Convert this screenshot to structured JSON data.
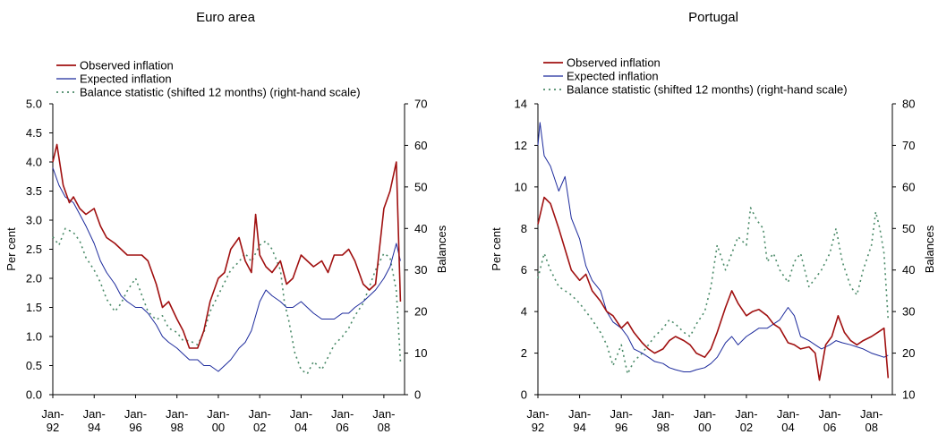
{
  "colors": {
    "observed": "#a01010",
    "expected": "#1c2a9c",
    "balance": "#4a8a68"
  },
  "chart_data": [
    {
      "type": "line",
      "title": "Euro area",
      "ylabel": "Per cent",
      "y2label": "Balances",
      "x_tick_labels": [
        [
          "Jan-",
          "92"
        ],
        [
          "Jan-",
          "94"
        ],
        [
          "Jan-",
          "96"
        ],
        [
          "Jan-",
          "98"
        ],
        [
          "Jan-",
          "00"
        ],
        [
          "Jan-",
          "02"
        ],
        [
          "Jan-",
          "04"
        ],
        [
          "Jan-",
          "06"
        ],
        [
          "Jan-",
          "08"
        ]
      ],
      "xlim": [
        1992.0,
        2009.0
      ],
      "ylim": [
        0.0,
        5.0
      ],
      "yticks": [
        "0.0",
        "0.5",
        "1.0",
        "1.5",
        "2.0",
        "2.5",
        "3.0",
        "3.5",
        "4.0",
        "4.5",
        "5.0"
      ],
      "y2lim": [
        0,
        70
      ],
      "y2ticks": [
        "0",
        "10",
        "20",
        "30",
        "40",
        "50",
        "60",
        "70"
      ],
      "legend": "top-left",
      "series": [
        {
          "name": "Observed inflation",
          "axis": "left",
          "x": [
            1992.0,
            1992.2,
            1992.5,
            1992.8,
            1993.0,
            1993.3,
            1993.6,
            1994.0,
            1994.3,
            1994.6,
            1995.0,
            1995.3,
            1995.6,
            1996.0,
            1996.3,
            1996.6,
            1997.0,
            1997.3,
            1997.6,
            1998.0,
            1998.3,
            1998.6,
            1999.0,
            1999.3,
            1999.6,
            2000.0,
            2000.3,
            2000.6,
            2001.0,
            2001.3,
            2001.6,
            2001.8,
            2002.0,
            2002.3,
            2002.6,
            2003.0,
            2003.3,
            2003.6,
            2004.0,
            2004.3,
            2004.6,
            2005.0,
            2005.3,
            2005.6,
            2006.0,
            2006.3,
            2006.6,
            2007.0,
            2007.3,
            2007.6,
            2008.0,
            2008.3,
            2008.6,
            2008.8
          ],
          "values": [
            4.0,
            4.3,
            3.6,
            3.3,
            3.4,
            3.2,
            3.1,
            3.2,
            2.9,
            2.7,
            2.6,
            2.5,
            2.4,
            2.4,
            2.4,
            2.3,
            1.9,
            1.5,
            1.6,
            1.3,
            1.1,
            0.8,
            0.8,
            1.1,
            1.6,
            2.0,
            2.1,
            2.5,
            2.7,
            2.3,
            2.1,
            3.1,
            2.4,
            2.2,
            2.1,
            2.3,
            1.9,
            2.0,
            2.4,
            2.3,
            2.2,
            2.3,
            2.1,
            2.4,
            2.4,
            2.5,
            2.3,
            1.9,
            1.8,
            1.9,
            3.2,
            3.5,
            4.0,
            1.6
          ]
        },
        {
          "name": "Expected inflation",
          "axis": "left",
          "x": [
            1992.0,
            1992.3,
            1992.6,
            1993.0,
            1993.3,
            1993.6,
            1994.0,
            1994.3,
            1994.6,
            1995.0,
            1995.3,
            1995.6,
            1996.0,
            1996.3,
            1996.6,
            1997.0,
            1997.3,
            1997.6,
            1998.0,
            1998.3,
            1998.6,
            1999.0,
            1999.3,
            1999.6,
            2000.0,
            2000.3,
            2000.6,
            2001.0,
            2001.3,
            2001.6,
            2002.0,
            2002.3,
            2002.6,
            2003.0,
            2003.3,
            2003.6,
            2004.0,
            2004.3,
            2004.6,
            2005.0,
            2005.3,
            2005.6,
            2006.0,
            2006.3,
            2006.6,
            2007.0,
            2007.3,
            2007.6,
            2008.0,
            2008.3,
            2008.6,
            2008.8
          ],
          "values": [
            3.9,
            3.6,
            3.4,
            3.3,
            3.1,
            2.9,
            2.6,
            2.3,
            2.1,
            1.9,
            1.7,
            1.6,
            1.5,
            1.5,
            1.4,
            1.2,
            1.0,
            0.9,
            0.8,
            0.7,
            0.6,
            0.6,
            0.5,
            0.5,
            0.4,
            0.5,
            0.6,
            0.8,
            0.9,
            1.1,
            1.6,
            1.8,
            1.7,
            1.6,
            1.5,
            1.5,
            1.6,
            1.5,
            1.4,
            1.3,
            1.3,
            1.3,
            1.4,
            1.4,
            1.5,
            1.6,
            1.7,
            1.8,
            2.0,
            2.2,
            2.6,
            2.3
          ]
        },
        {
          "name": "Balance statistic (shifted 12 months) (right-hand scale)",
          "axis": "right",
          "x": [
            1992.0,
            1992.3,
            1992.6,
            1993.0,
            1993.3,
            1993.6,
            1994.0,
            1994.3,
            1994.6,
            1995.0,
            1995.3,
            1995.6,
            1996.0,
            1996.3,
            1996.6,
            1997.0,
            1997.3,
            1997.6,
            1998.0,
            1998.3,
            1998.6,
            1999.0,
            1999.3,
            1999.6,
            2000.0,
            2000.3,
            2000.6,
            2001.0,
            2001.3,
            2001.6,
            2002.0,
            2002.3,
            2002.6,
            2003.0,
            2003.2,
            2003.4,
            2003.7,
            2004.0,
            2004.3,
            2004.6,
            2005.0,
            2005.3,
            2005.6,
            2006.0,
            2006.3,
            2006.6,
            2007.0,
            2007.3,
            2007.6,
            2008.0,
            2008.3,
            2008.6,
            2008.8
          ],
          "values": [
            38,
            36,
            40,
            39,
            37,
            33,
            30,
            27,
            23,
            20,
            22,
            25,
            28,
            24,
            20,
            18,
            19,
            16,
            15,
            13,
            13,
            12,
            15,
            20,
            24,
            27,
            30,
            32,
            34,
            32,
            36,
            37,
            35,
            30,
            22,
            18,
            10,
            6,
            5,
            8,
            6,
            9,
            12,
            14,
            16,
            19,
            22,
            26,
            30,
            34,
            33,
            25,
            8
          ]
        }
      ]
    },
    {
      "type": "line",
      "title": "Portugal",
      "ylabel": "Per cent",
      "y2label": "Balances",
      "x_tick_labels": [
        [
          "Jan-",
          "92"
        ],
        [
          "Jan-",
          "94"
        ],
        [
          "Jan-",
          "96"
        ],
        [
          "Jan-",
          "98"
        ],
        [
          "Jan-",
          "00"
        ],
        [
          "Jan-",
          "02"
        ],
        [
          "Jan-",
          "04"
        ],
        [
          "Jan-",
          "06"
        ],
        [
          "Jan-",
          "08"
        ]
      ],
      "xlim": [
        1992.0,
        2009.0
      ],
      "ylim": [
        0,
        14
      ],
      "yticks": [
        "0",
        "2",
        "4",
        "6",
        "8",
        "10",
        "12",
        "14"
      ],
      "y2lim": [
        10,
        80
      ],
      "y2ticks": [
        "10",
        "20",
        "30",
        "40",
        "50",
        "60",
        "70",
        "80"
      ],
      "legend": "top-left",
      "series": [
        {
          "name": "Observed inflation",
          "axis": "left",
          "x": [
            1992.0,
            1992.3,
            1992.6,
            1993.0,
            1993.3,
            1993.6,
            1994.0,
            1994.3,
            1994.6,
            1995.0,
            1995.3,
            1995.6,
            1996.0,
            1996.3,
            1996.6,
            1997.0,
            1997.3,
            1997.6,
            1998.0,
            1998.3,
            1998.6,
            1999.0,
            1999.3,
            1999.6,
            2000.0,
            2000.3,
            2000.6,
            2001.0,
            2001.3,
            2001.6,
            2002.0,
            2002.3,
            2002.6,
            2003.0,
            2003.3,
            2003.6,
            2004.0,
            2004.3,
            2004.6,
            2005.0,
            2005.3,
            2005.5,
            2005.8,
            2006.1,
            2006.4,
            2006.7,
            2007.0,
            2007.3,
            2007.6,
            2008.0,
            2008.3,
            2008.6,
            2008.8
          ],
          "values": [
            8.2,
            9.5,
            9.2,
            8.0,
            7.0,
            6.0,
            5.5,
            5.8,
            5.0,
            4.5,
            4.0,
            3.8,
            3.2,
            3.5,
            3.0,
            2.5,
            2.2,
            2.0,
            2.2,
            2.6,
            2.8,
            2.6,
            2.4,
            2.0,
            1.8,
            2.2,
            3.0,
            4.2,
            5.0,
            4.4,
            3.8,
            4.0,
            4.1,
            3.8,
            3.4,
            3.2,
            2.5,
            2.4,
            2.2,
            2.3,
            2.0,
            0.7,
            2.4,
            2.8,
            3.8,
            3.0,
            2.6,
            2.4,
            2.6,
            2.8,
            3.0,
            3.2,
            0.8
          ]
        },
        {
          "name": "Expected inflation",
          "axis": "left",
          "x": [
            1992.0,
            1992.1,
            1992.3,
            1992.6,
            1993.0,
            1993.3,
            1993.6,
            1994.0,
            1994.3,
            1994.6,
            1995.0,
            1995.3,
            1995.6,
            1996.0,
            1996.3,
            1996.6,
            1997.0,
            1997.3,
            1997.6,
            1998.0,
            1998.3,
            1998.6,
            1999.0,
            1999.3,
            1999.6,
            2000.0,
            2000.3,
            2000.6,
            2001.0,
            2001.3,
            2001.6,
            2002.0,
            2002.3,
            2002.6,
            2003.0,
            2003.3,
            2003.6,
            2004.0,
            2004.3,
            2004.6,
            2005.0,
            2005.3,
            2005.6,
            2006.0,
            2006.3,
            2006.6,
            2007.0,
            2007.3,
            2007.6,
            2008.0,
            2008.3,
            2008.6,
            2008.8
          ],
          "values": [
            12.0,
            13.1,
            11.5,
            11.0,
            9.8,
            10.5,
            8.5,
            7.5,
            6.2,
            5.5,
            5.0,
            4.0,
            3.5,
            3.2,
            2.8,
            2.2,
            2.0,
            1.8,
            1.6,
            1.5,
            1.3,
            1.2,
            1.1,
            1.1,
            1.2,
            1.3,
            1.5,
            1.8,
            2.5,
            2.8,
            2.4,
            2.8,
            3.0,
            3.2,
            3.2,
            3.4,
            3.6,
            4.2,
            3.8,
            2.8,
            2.6,
            2.4,
            2.2,
            2.4,
            2.6,
            2.5,
            2.4,
            2.3,
            2.2,
            2.0,
            1.9,
            1.8,
            1.9
          ]
        },
        {
          "name": "Balance statistic (shifted 12 months) (right-hand scale)",
          "axis": "right",
          "x": [
            1992.0,
            1992.3,
            1992.6,
            1993.0,
            1993.3,
            1993.6,
            1994.0,
            1994.3,
            1994.6,
            1995.0,
            1995.3,
            1995.6,
            1996.0,
            1996.3,
            1996.6,
            1997.0,
            1997.3,
            1997.6,
            1998.0,
            1998.3,
            1998.6,
            1999.0,
            1999.3,
            1999.6,
            2000.0,
            2000.3,
            2000.6,
            2001.0,
            2001.3,
            2001.6,
            2002.0,
            2002.2,
            2002.5,
            2002.8,
            2003.0,
            2003.3,
            2003.6,
            2004.0,
            2004.3,
            2004.6,
            2005.0,
            2005.3,
            2005.6,
            2006.0,
            2006.3,
            2006.6,
            2007.0,
            2007.3,
            2007.6,
            2008.0,
            2008.2,
            2008.4,
            2008.6,
            2008.8
          ],
          "values": [
            38,
            44,
            40,
            36,
            35,
            34,
            32,
            30,
            28,
            25,
            22,
            17,
            22,
            15,
            18,
            20,
            22,
            24,
            26,
            28,
            27,
            25,
            24,
            27,
            30,
            36,
            46,
            40,
            44,
            48,
            46,
            55,
            52,
            50,
            42,
            44,
            40,
            37,
            42,
            44,
            36,
            38,
            40,
            44,
            50,
            42,
            36,
            34,
            40,
            46,
            54,
            50,
            44,
            28
          ]
        }
      ]
    }
  ]
}
